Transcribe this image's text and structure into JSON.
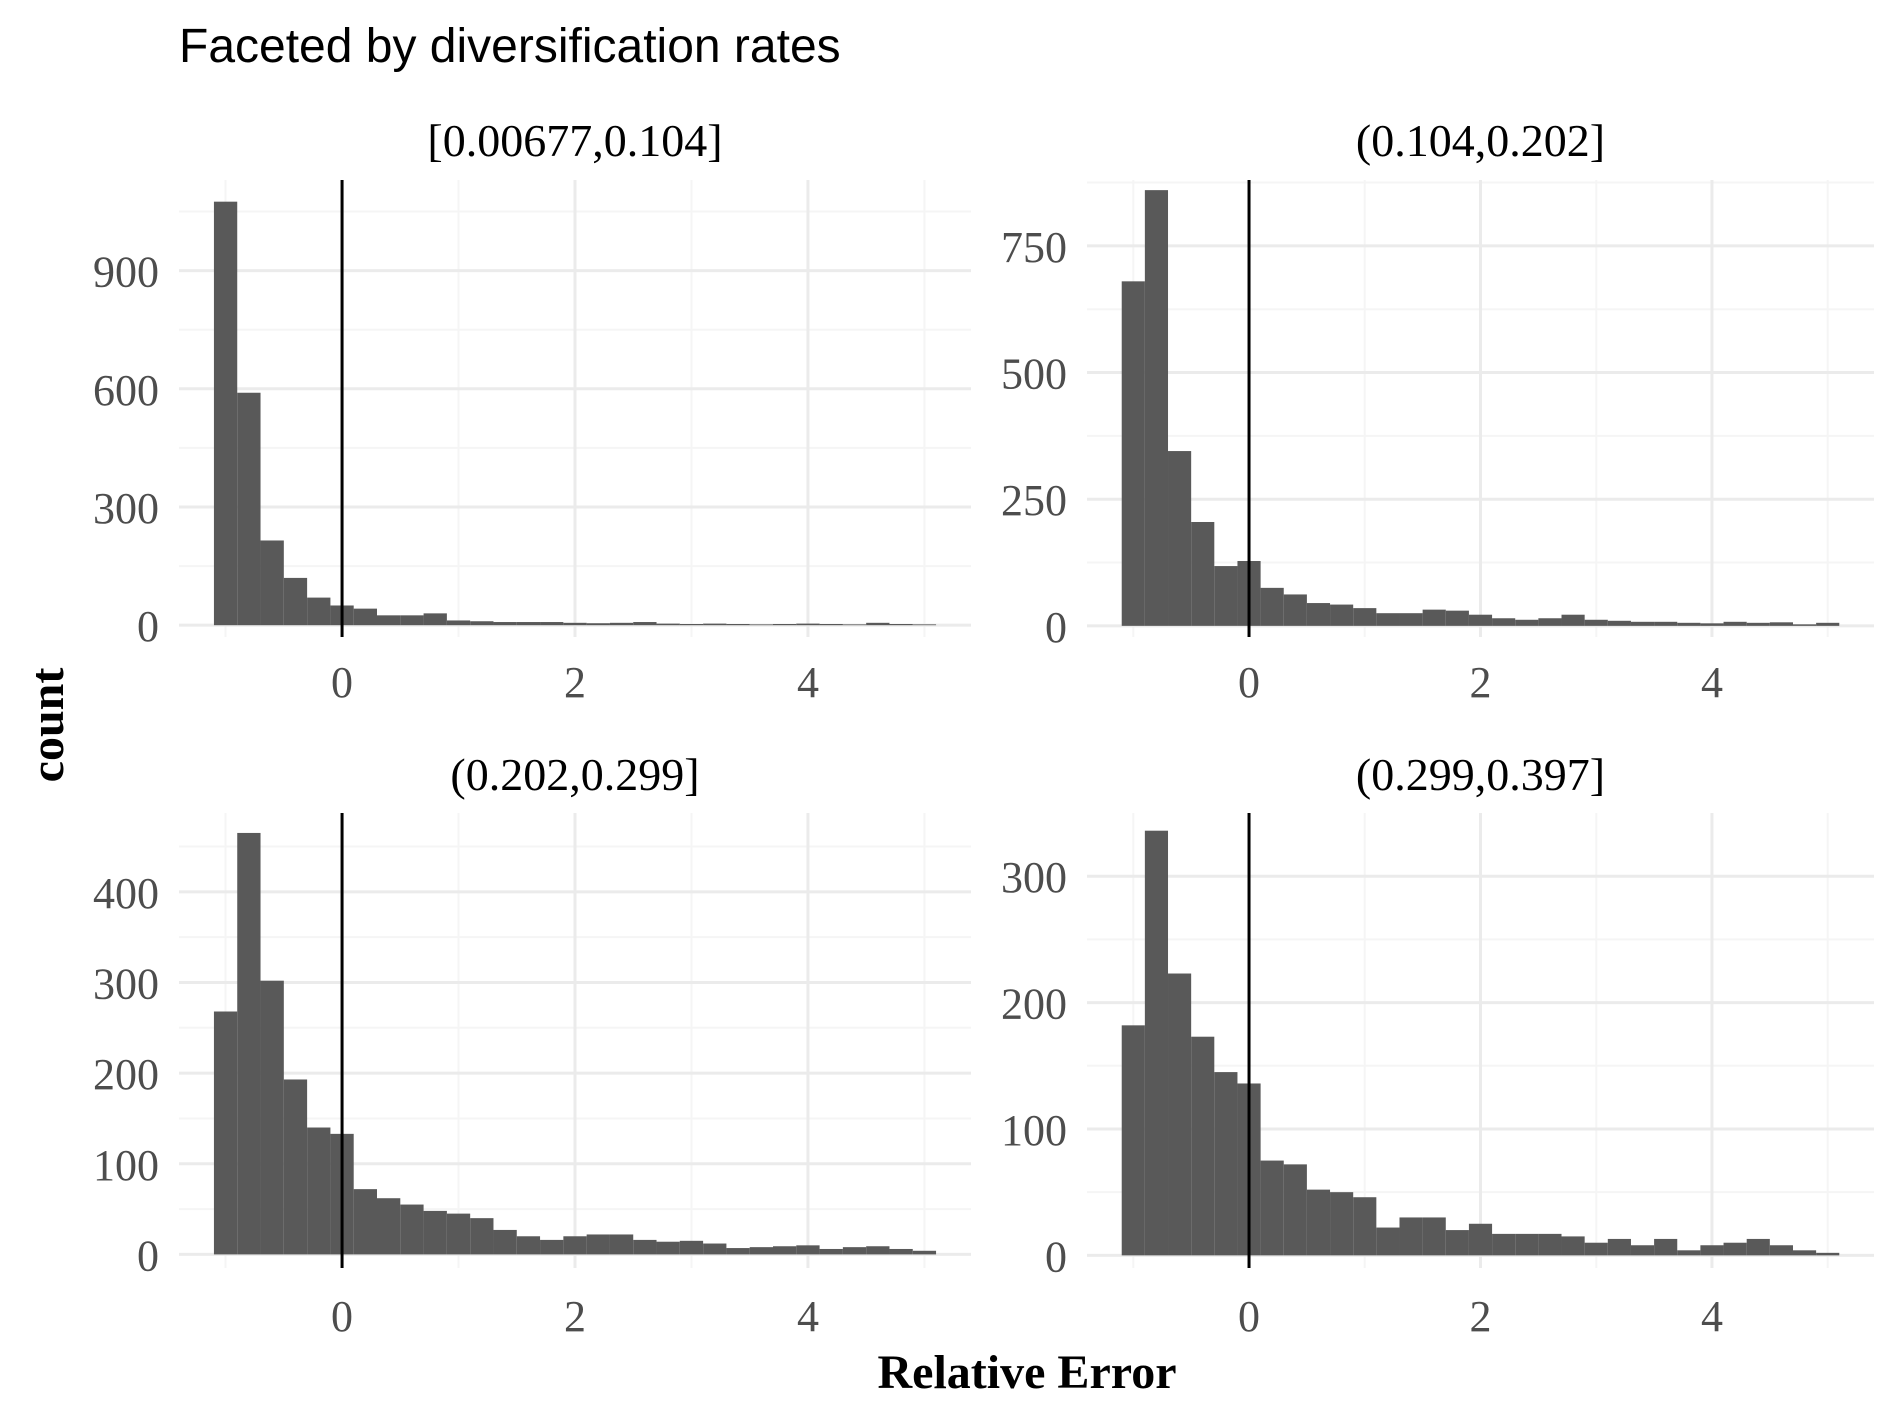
{
  "colors": {
    "bar": "#595959",
    "grid_major": "#ebebeb",
    "grid_minor": "#f5f5f5",
    "vline": "#000000",
    "text": "#4d4d4d",
    "title": "#000000"
  },
  "chart_data": {
    "type": "bar",
    "subtype": "faceted histogram",
    "title": "Faceted by diversification rates",
    "xlabel": "Relative Error",
    "ylabel": "count",
    "bin_width": 0.2,
    "bin_centers": [
      -1.0,
      -0.8,
      -0.6,
      -0.4,
      -0.2,
      0.0,
      0.2,
      0.4,
      0.6,
      0.8,
      1.0,
      1.2,
      1.4,
      1.6,
      1.8,
      2.0,
      2.2,
      2.4,
      2.6,
      2.8,
      3.0,
      3.2,
      3.4,
      3.6,
      3.8,
      4.0,
      4.2,
      4.4,
      4.6,
      4.8,
      5.0
    ],
    "reference_line_x": 0,
    "x_ticks": [
      0,
      2,
      4
    ],
    "x_tick_labels": [
      "0",
      "2",
      "4"
    ],
    "xlim": [
      -1.4,
      5.4
    ],
    "facets": [
      {
        "label": "[0.00677,0.104]",
        "ylim": [
          -30,
          1130
        ],
        "y_ticks": [
          0,
          300,
          600,
          900
        ],
        "y_tick_labels": [
          "0",
          "300",
          "600",
          "900"
        ],
        "values": [
          1075,
          590,
          215,
          120,
          70,
          50,
          42,
          25,
          25,
          30,
          12,
          10,
          8,
          8,
          8,
          6,
          5,
          6,
          8,
          4,
          3,
          4,
          3,
          2,
          3,
          4,
          3,
          2,
          6,
          3,
          2
        ]
      },
      {
        "label": "(0.104,0.202]",
        "ylim": [
          -22,
          880
        ],
        "y_ticks": [
          0,
          250,
          500,
          750
        ],
        "y_tick_labels": [
          "0",
          "250",
          "500",
          "750"
        ],
        "values": [
          680,
          860,
          345,
          205,
          118,
          128,
          75,
          62,
          45,
          42,
          35,
          25,
          25,
          32,
          30,
          22,
          15,
          12,
          15,
          22,
          12,
          10,
          8,
          8,
          6,
          5,
          8,
          6,
          7,
          3,
          6
        ]
      },
      {
        "label": "(0.202,0.299]",
        "ylim": [
          -15,
          487
        ],
        "y_ticks": [
          0,
          100,
          200,
          300,
          400
        ],
        "y_tick_labels": [
          "0",
          "100",
          "200",
          "300",
          "400"
        ],
        "values": [
          268,
          465,
          302,
          193,
          140,
          133,
          72,
          62,
          55,
          48,
          45,
          40,
          27,
          20,
          16,
          20,
          22,
          22,
          16,
          14,
          15,
          12,
          7,
          8,
          9,
          10,
          6,
          8,
          9,
          6,
          4
        ]
      },
      {
        "label": "(0.299,0.397]",
        "ylim": [
          -10,
          350
        ],
        "y_ticks": [
          0,
          100,
          200,
          300
        ],
        "y_tick_labels": [
          "0",
          "100",
          "200",
          "300"
        ],
        "values": [
          182,
          336,
          223,
          173,
          145,
          136,
          75,
          72,
          52,
          50,
          46,
          22,
          30,
          30,
          20,
          25,
          17,
          17,
          17,
          15,
          10,
          13,
          8,
          13,
          4,
          8,
          10,
          13,
          8,
          4,
          2
        ]
      }
    ]
  }
}
